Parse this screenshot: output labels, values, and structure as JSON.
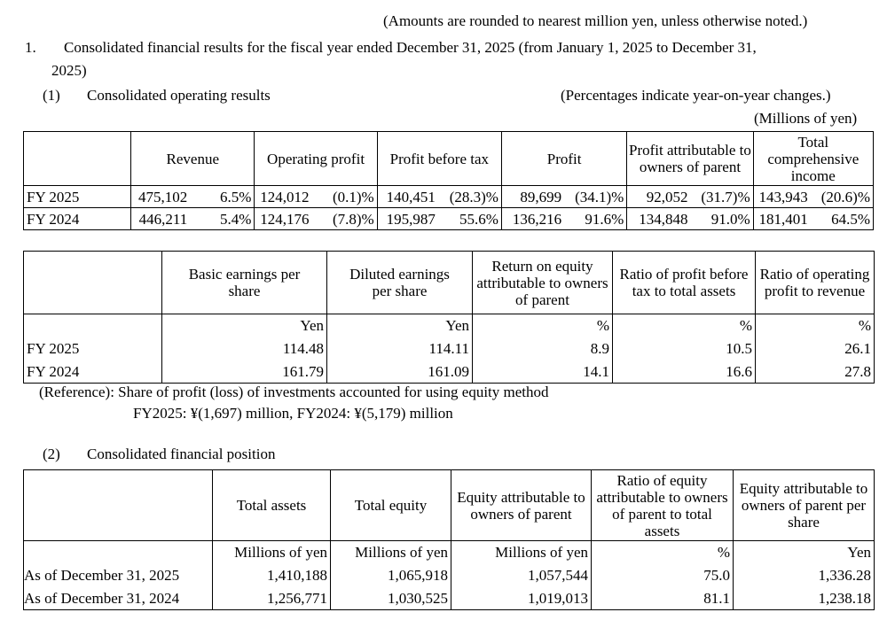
{
  "note_top": "(Amounts are rounded to nearest million yen, unless otherwise noted.)",
  "section1": {
    "number": "1.",
    "title_line1": "Consolidated financial results for the fiscal year ended December 31, 2025 (from January 1, 2025  to December 31,",
    "title_line2": "2025)"
  },
  "sub1": {
    "number": "(1)",
    "title": "Consolidated operating results",
    "note": "(Percentages indicate year-on-year changes.)",
    "unit": "(Millions of yen)"
  },
  "table1": {
    "headers": [
      "Revenue",
      "Operating profit",
      "Profit before tax",
      "Profit",
      "Profit attributable to owners of parent",
      "Total comprehensive income"
    ],
    "rows": [
      {
        "label": "FY  2025",
        "cells": [
          "475,102",
          "6.5%",
          "124,012",
          "(0.1)%",
          "140,451",
          "(28.3)%",
          "89,699",
          "(34.1)%",
          "92,052",
          "(31.7)%",
          "143,943",
          "(20.6)%"
        ]
      },
      {
        "label": "FY  2024",
        "cells": [
          "446,211",
          "5.4%",
          "124,176",
          "(7.8)%",
          "195,987",
          "55.6%",
          "136,216",
          "91.6%",
          "134,848",
          "91.0%",
          "181,401",
          "64.5%"
        ]
      }
    ]
  },
  "table2": {
    "headers": [
      "Basic earnings per share",
      "Diluted earnings per share",
      "Return on equity attributable to owners of parent",
      "Ratio of profit before tax to total assets",
      "Ratio of operating profit to revenue"
    ],
    "units": [
      "Yen",
      "Yen",
      "%",
      "%",
      "%"
    ],
    "rows": [
      {
        "label": "FY  2025",
        "cells": [
          "114.48",
          "114.11",
          "8.9",
          "10.5",
          "26.1"
        ]
      },
      {
        "label": "FY  2024",
        "cells": [
          "161.79",
          "161.09",
          "14.1",
          "16.6",
          "27.8"
        ]
      }
    ]
  },
  "reference": {
    "line1": "(Reference): Share of profit (loss) of investments accounted for using equity method",
    "line2": "FY2025: ¥(1,697) million, FY2024: ¥(5,179) million"
  },
  "sub2": {
    "number": "(2)",
    "title": "Consolidated financial position"
  },
  "table3": {
    "headers": [
      "Total assets",
      "Total equity",
      "Equity attributable to owners of parent",
      "Ratio of equity attributable to owners of parent to total assets",
      "Equity attributable to owners of parent per share"
    ],
    "units": [
      "Millions of yen",
      "Millions of yen",
      "Millions of yen",
      "%",
      "Yen"
    ],
    "rows": [
      {
        "label": "As of December 31, 2025",
        "cells": [
          "1,410,188",
          "1,065,918",
          "1,057,544",
          "75.0",
          "1,336.28"
        ]
      },
      {
        "label": "As of December 31, 2024",
        "cells": [
          "1,256,771",
          "1,030,525",
          "1,019,013",
          "81.1",
          "1,238.18"
        ]
      }
    ]
  }
}
